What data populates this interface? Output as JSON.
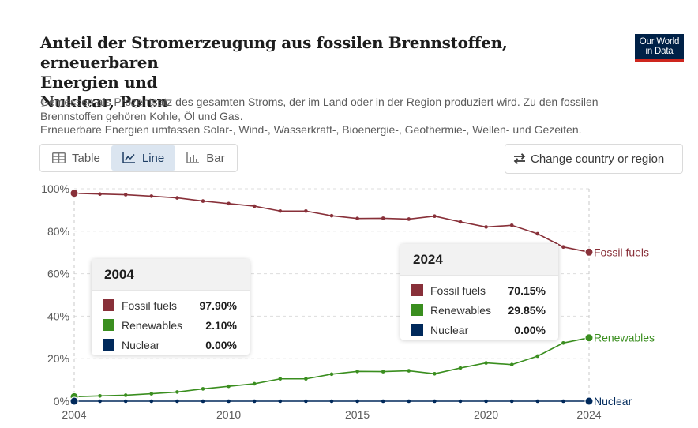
{
  "header": {
    "title_lines": [
      "Anteil der Stromerzeugung aus fossilen Brennstoffen, erneuerbaren",
      "Energien und",
      "Nuklear, Polen"
    ],
    "subtitle_lines": [
      "Gemessen als Prozentsatz des gesamten Stroms, der im Land oder in der Region produziert wird. Zu den fossilen",
      "Brennstoffen gehören Kohle, Öl und Gas.",
      "Erneuerbare Energien umfassen Solar-, Wind-, Wasserkraft-, Bioenergie-, Geothermie-, Wellen- und Gezeiten."
    ]
  },
  "logo": {
    "line1": "Our World",
    "line2": "in Data",
    "bg": "#002147",
    "accent": "#ce261e"
  },
  "tabs": [
    {
      "label": "Table",
      "icon": "table-icon",
      "active": false
    },
    {
      "label": "Line",
      "icon": "line-chart-icon",
      "active": true
    },
    {
      "label": "Bar",
      "icon": "bar-chart-icon",
      "active": false
    }
  ],
  "change_button": {
    "label": "Change country or region",
    "icon": "swap-icon"
  },
  "tooltips": [
    {
      "year": "2004",
      "rows": [
        {
          "name": "Fossil fuels",
          "value": "97.90%",
          "color": "#883039"
        },
        {
          "name": "Renewables",
          "value": "2.10%",
          "color": "#3a8e1f"
        },
        {
          "name": "Nuclear",
          "value": "0.00%",
          "color": "#00295b"
        }
      ]
    },
    {
      "year": "2024",
      "rows": [
        {
          "name": "Fossil fuels",
          "value": "70.15%",
          "color": "#883039"
        },
        {
          "name": "Renewables",
          "value": "29.85%",
          "color": "#3a8e1f"
        },
        {
          "name": "Nuclear",
          "value": "0.00%",
          "color": "#00295b"
        }
      ]
    }
  ],
  "chart_data": {
    "type": "line",
    "x": [
      2004,
      2005,
      2006,
      2007,
      2008,
      2009,
      2010,
      2011,
      2012,
      2013,
      2014,
      2015,
      2016,
      2017,
      2018,
      2019,
      2020,
      2021,
      2022,
      2023,
      2024
    ],
    "series": [
      {
        "name": "Fossil fuels",
        "color": "#883039",
        "values": [
          97.9,
          97.5,
          97.2,
          96.5,
          95.7,
          94.2,
          93.0,
          91.8,
          89.5,
          89.5,
          87.3,
          86.0,
          86.1,
          85.7,
          87.1,
          84.4,
          82.0,
          82.8,
          78.8,
          72.6,
          70.15
        ]
      },
      {
        "name": "Renewables",
        "color": "#3a8e1f",
        "values": [
          2.1,
          2.5,
          2.8,
          3.5,
          4.3,
          5.8,
          7.0,
          8.2,
          10.5,
          10.5,
          12.7,
          14.0,
          13.9,
          14.3,
          12.9,
          15.6,
          18.0,
          17.2,
          21.2,
          27.4,
          29.85
        ]
      },
      {
        "name": "Nuclear",
        "color": "#00295b",
        "values": [
          0,
          0,
          0,
          0,
          0,
          0,
          0,
          0,
          0,
          0,
          0,
          0,
          0,
          0,
          0,
          0,
          0,
          0,
          0,
          0,
          0
        ]
      }
    ],
    "y_ticks": [
      "0%",
      "20%",
      "40%",
      "60%",
      "80%",
      "100%"
    ],
    "x_ticks": [
      2004,
      2010,
      2015,
      2020,
      2024
    ],
    "ylim": [
      0,
      100
    ],
    "grid": "horizontal-dashed"
  }
}
